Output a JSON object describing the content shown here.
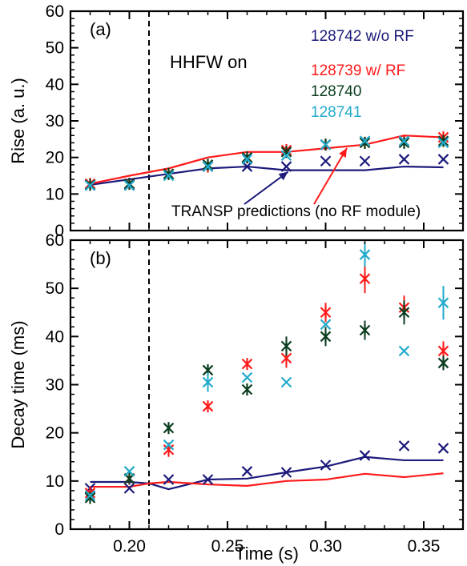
{
  "chart_data": [
    {
      "panel": "(a)",
      "type": "scatter",
      "ylabel": "Rise (a. u.)",
      "xlim": [
        0.17,
        0.37
      ],
      "ylim": [
        0,
        60
      ],
      "yticks": [
        "0",
        "10",
        "20",
        "30",
        "40",
        "50",
        "60"
      ],
      "annotations": {
        "hhfw": "HHFW on",
        "transp": "TRANSP predictions (no RF module)"
      },
      "vline_x": 0.21,
      "legend": [
        {
          "label": "128742 w/o RF",
          "color": "#1c1a7a"
        },
        {
          "label": "128739 w/ RF",
          "color": "#ff1a1a"
        },
        {
          "label": "128740",
          "color": "#0b3d1f"
        },
        {
          "label": "128741",
          "color": "#22aacc"
        }
      ],
      "series": [
        {
          "name": "128742 w/o RF",
          "color": "#1c1a7a",
          "marker": "x",
          "x": [
            0.18,
            0.2,
            0.22,
            0.24,
            0.26,
            0.28,
            0.3,
            0.32,
            0.34,
            0.36
          ],
          "y": [
            12.5,
            12.5,
            15.5,
            17.5,
            17.5,
            17.5,
            19.0,
            19.0,
            19.5,
            19.5
          ]
        },
        {
          "name": "128739 w/ RF",
          "color": "#ff1a1a",
          "marker": "asterisk",
          "x": [
            0.18,
            0.2,
            0.22,
            0.24,
            0.26,
            0.28,
            0.3,
            0.32,
            0.34,
            0.36
          ],
          "y": [
            12.8,
            12.8,
            15.5,
            17.5,
            20.0,
            22.0,
            23.5,
            24.0,
            24.5,
            25.5
          ]
        },
        {
          "name": "128740",
          "color": "#0b3d1f",
          "marker": "asterisk",
          "x": [
            0.18,
            0.2,
            0.22,
            0.24,
            0.26,
            0.28,
            0.3,
            0.32,
            0.34,
            0.36
          ],
          "y": [
            12.5,
            12.8,
            15.5,
            18.0,
            20.0,
            21.5,
            23.5,
            24.0,
            24.0,
            24.5
          ]
        },
        {
          "name": "128741",
          "color": "#22aacc",
          "marker": "x",
          "x": [
            0.18,
            0.2,
            0.22,
            0.24,
            0.26,
            0.28,
            0.3,
            0.32,
            0.34,
            0.36
          ],
          "y": [
            12.3,
            12.3,
            15.0,
            17.5,
            19.5,
            20.5,
            23.5,
            24.5,
            24.5,
            24.0
          ]
        }
      ],
      "lines": [
        {
          "name": "TRANSP no RF (128742)",
          "color": "#1c1a7a",
          "x": [
            0.18,
            0.2,
            0.22,
            0.24,
            0.26,
            0.28,
            0.3,
            0.32,
            0.34,
            0.36
          ],
          "y": [
            12.5,
            14.0,
            15.5,
            17.0,
            17.5,
            16.5,
            16.5,
            16.5,
            17.5,
            17.3
          ]
        },
        {
          "name": "TRANSP no RF (128739)",
          "color": "#ff1a1a",
          "x": [
            0.18,
            0.2,
            0.22,
            0.24,
            0.26,
            0.28,
            0.3,
            0.32,
            0.34,
            0.36
          ],
          "y": [
            12.8,
            15.0,
            17.0,
            20.0,
            21.5,
            21.5,
            22.5,
            23.5,
            26.0,
            25.5
          ]
        }
      ]
    },
    {
      "panel": "(b)",
      "type": "scatter",
      "xlabel": "Time (s)",
      "ylabel": "Decay time (ms)",
      "xlim": [
        0.17,
        0.37
      ],
      "ylim": [
        0,
        60
      ],
      "xticks": [
        "0.20",
        "0.25",
        "0.30",
        "0.35"
      ],
      "yticks": [
        "0",
        "10",
        "20",
        "30",
        "40",
        "50",
        "60"
      ],
      "vline_x": 0.21,
      "series": [
        {
          "name": "128742 w/o RF",
          "color": "#1c1a7a",
          "marker": "x",
          "x": [
            0.18,
            0.2,
            0.22,
            0.24,
            0.26,
            0.28,
            0.3,
            0.32,
            0.34,
            0.36
          ],
          "y": [
            8.5,
            8.5,
            10.3,
            10.3,
            12.0,
            11.8,
            13.3,
            15.3,
            17.3,
            16.8
          ],
          "err": [
            0,
            0,
            0,
            0,
            0,
            0,
            0,
            0,
            0,
            0
          ]
        },
        {
          "name": "128739 w/ RF",
          "color": "#ff1a1a",
          "marker": "asterisk",
          "x": [
            0.18,
            0.2,
            0.22,
            0.24,
            0.26,
            0.28,
            0.3,
            0.32,
            0.34,
            0.36
          ],
          "y": [
            7.5,
            10.5,
            16.5,
            25.5,
            34.3,
            35.5,
            45.0,
            52.0,
            46.0,
            37.0
          ],
          "err": [
            0,
            0,
            1.5,
            0,
            0,
            2.0,
            2.0,
            3.0,
            2.5,
            2.0
          ]
        },
        {
          "name": "128740",
          "color": "#0b3d1f",
          "marker": "asterisk",
          "x": [
            0.18,
            0.2,
            0.22,
            0.24,
            0.26,
            0.28,
            0.3,
            0.32,
            0.34,
            0.36
          ],
          "y": [
            6.5,
            10.5,
            21.0,
            33.0,
            29.0,
            38.0,
            40.0,
            41.3,
            45.0,
            34.5
          ],
          "err": [
            0,
            0,
            0,
            0,
            0,
            2.0,
            2.0,
            2.0,
            2.5,
            1.5
          ]
        },
        {
          "name": "128741",
          "color": "#22aacc",
          "marker": "x",
          "x": [
            0.18,
            0.2,
            0.22,
            0.24,
            0.26,
            0.28,
            0.3,
            0.32,
            0.34,
            0.36
          ],
          "y": [
            7.0,
            12.0,
            17.5,
            30.5,
            31.5,
            30.5,
            42.5,
            57.0,
            37.0,
            47.0
          ],
          "err": [
            0,
            0,
            0,
            2.0,
            0,
            0,
            0,
            2.5,
            0,
            3.5
          ]
        }
      ],
      "lines": [
        {
          "name": "TRANSP no RF (128742)",
          "color": "#1c1a7a",
          "x": [
            0.18,
            0.2,
            0.21,
            0.22,
            0.24,
            0.26,
            0.28,
            0.3,
            0.32,
            0.34,
            0.36
          ],
          "y": [
            9.8,
            9.8,
            9.5,
            8.3,
            10.3,
            10.5,
            11.8,
            13.0,
            15.0,
            14.3,
            14.3
          ]
        },
        {
          "name": "TRANSP no RF (128739)",
          "color": "#ff1a1a",
          "x": [
            0.18,
            0.2,
            0.21,
            0.22,
            0.24,
            0.26,
            0.28,
            0.3,
            0.32,
            0.34,
            0.36
          ],
          "y": [
            8.8,
            8.8,
            9.5,
            9.8,
            9.3,
            9.0,
            10.0,
            10.3,
            11.5,
            10.8,
            11.6
          ]
        }
      ]
    }
  ]
}
